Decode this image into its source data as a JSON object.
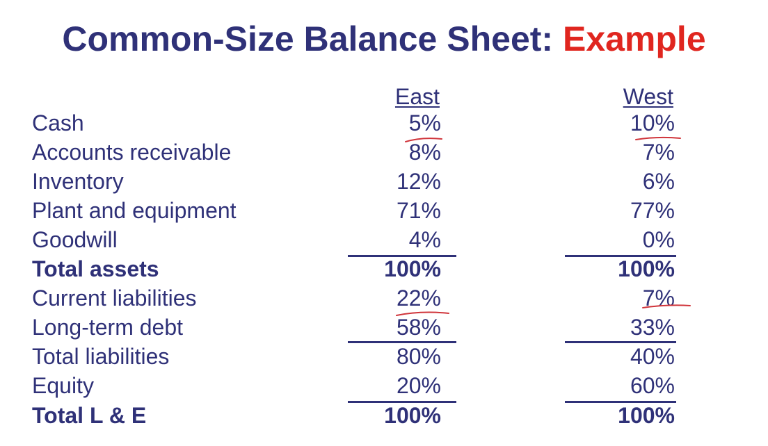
{
  "title": {
    "main": "Common-Size Balance Sheet:",
    "accent": "Example"
  },
  "columns": {
    "east": "East",
    "west": "West"
  },
  "rows": [
    {
      "label": "Cash",
      "east": "5%",
      "west": "10%"
    },
    {
      "label": "Accounts receivable",
      "east": "8%",
      "west": "7%"
    },
    {
      "label": "Inventory",
      "east": "12%",
      "west": "6%"
    },
    {
      "label": "Plant and equipment",
      "east": "71%",
      "west": "77%"
    },
    {
      "label": "Goodwill",
      "east": "4%",
      "west": "0%"
    },
    {
      "label": "Total assets",
      "east": "100%",
      "west": "100%"
    },
    {
      "label": "Current liabilities",
      "east": "22%",
      "west": "7%"
    },
    {
      "label": "Long-term debt",
      "east": "58%",
      "west": "33%"
    },
    {
      "label": "Total liabilities",
      "east": "80%",
      "west": "40%"
    },
    {
      "label": "Equity",
      "east": "20%",
      "west": "60%"
    },
    {
      "label": "Total L & E",
      "east": "100%",
      "west": "100%"
    }
  ],
  "colors": {
    "title": "#2f3178",
    "accent": "#e0261f",
    "text": "#2f3178",
    "annotation": "#d0343a"
  }
}
